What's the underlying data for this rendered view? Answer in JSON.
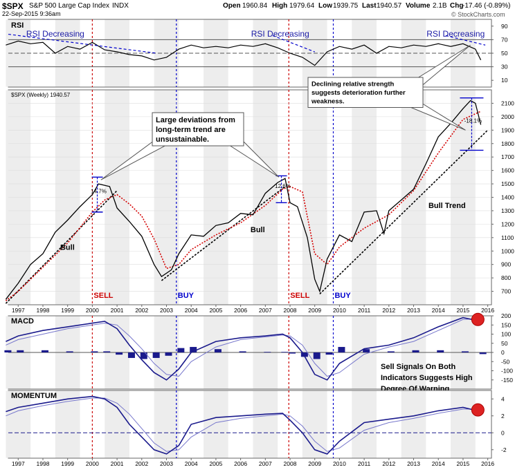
{
  "header": {
    "symbol": "$SPX",
    "name": "S&P 500 Large Cap Index",
    "exchange": "INDX",
    "date": "22-Sep-2015 9:36am",
    "open_label": "Open",
    "open_value": "1960.84",
    "high_label": "High",
    "high_value": "1979.64",
    "low_label": "Low",
    "low_value": "1939.75",
    "last_label": "Last",
    "last_value": "1940.57",
    "volume_label": "Volume",
    "volume_value": "2.1B",
    "chg_label": "Chg",
    "chg_value": "-17.46 (-0.89%)",
    "watermark": "© StockCharts.com"
  },
  "chart_data": [
    {
      "panel": "rsi",
      "type": "line",
      "title": "RSI",
      "ylim": [
        0,
        100
      ],
      "yticks": [
        10,
        30,
        50,
        70,
        90
      ],
      "guide_lines": [
        30,
        50,
        70
      ],
      "series": [
        {
          "x": [
            1996.5,
            1997,
            1997.5,
            1998,
            1998.5,
            1999,
            1999.5,
            2000,
            2000.5,
            2001,
            2001.5,
            2002,
            2002.5,
            2003,
            2003.5,
            2004,
            2004.5,
            2005,
            2005.5,
            2006,
            2006.5,
            2007,
            2007.5,
            2008,
            2008.5,
            2009,
            2009.5,
            2010,
            2010.5,
            2011,
            2011.5,
            2012,
            2012.5,
            2013,
            2013.5,
            2014,
            2014.5,
            2015,
            2015.5,
            2015.72
          ],
          "values": [
            62,
            68,
            64,
            66,
            50,
            60,
            56,
            66,
            55,
            52,
            48,
            46,
            40,
            44,
            56,
            62,
            58,
            60,
            58,
            62,
            60,
            64,
            58,
            50,
            44,
            32,
            52,
            60,
            56,
            62,
            50,
            60,
            58,
            62,
            60,
            64,
            60,
            64,
            56,
            40
          ]
        }
      ],
      "annotations": [
        {
          "text": "RSI Decreasing",
          "x": 1998.5
        },
        {
          "text": "RSI Decreasing",
          "x": 2007.6
        },
        {
          "text": "RSI Decreasing",
          "x": 2014.7
        }
      ],
      "callout": [
        "Declining relative strength",
        "suggests deterioration further",
        "weakness."
      ]
    },
    {
      "panel": "price",
      "type": "line",
      "label": "$SPX (Weekly) 1940.57",
      "ylim": [
        600,
        2200
      ],
      "yticks": [
        700,
        800,
        900,
        1000,
        1100,
        1200,
        1300,
        1400,
        1500,
        1600,
        1700,
        1800,
        1900,
        2000,
        2100
      ],
      "xticks": [
        1997,
        1998,
        1999,
        2000,
        2001,
        2002,
        2003,
        2004,
        2005,
        2006,
        2007,
        2008,
        2009,
        2010,
        2011,
        2012,
        2013,
        2014,
        2015,
        2016
      ],
      "series": [
        {
          "x": [
            1996.5,
            1997,
            1997.5,
            1998,
            1998.5,
            1999,
            1999.5,
            2000,
            2000.25,
            2000.7,
            2001,
            2001.5,
            2002,
            2002.5,
            2002.8,
            2003.2,
            2003.5,
            2004,
            2004.5,
            2005,
            2005.5,
            2006,
            2006.5,
            2007,
            2007.5,
            2007.8,
            2008,
            2008.3,
            2008.7,
            2009,
            2009.2,
            2009.5,
            2010,
            2010.5,
            2011,
            2011.5,
            2011.8,
            2012,
            2012.5,
            2013,
            2013.5,
            2014,
            2014.5,
            2015,
            2015.3,
            2015.5,
            2015.72
          ],
          "values": [
            640,
            760,
            900,
            980,
            1140,
            1230,
            1330,
            1420,
            1500,
            1480,
            1320,
            1220,
            1110,
            900,
            810,
            860,
            980,
            1120,
            1110,
            1190,
            1210,
            1280,
            1270,
            1430,
            1510,
            1540,
            1360,
            1330,
            1100,
            790,
            700,
            940,
            1120,
            1070,
            1290,
            1300,
            1130,
            1300,
            1380,
            1460,
            1650,
            1850,
            1950,
            2060,
            2120,
            2100,
            1940
          ]
        },
        {
          "x": [
            1996.5,
            1997,
            1998,
            1999,
            2000,
            2000.5,
            2001,
            2001.5,
            2002,
            2002.5,
            2003,
            2003.5,
            2004,
            2005,
            2006,
            2007,
            2007.7,
            2008,
            2008.5,
            2009,
            2009.5,
            2010,
            2011,
            2012,
            2013,
            2014,
            2015,
            2015.72
          ],
          "values": [
            630,
            700,
            880,
            1060,
            1290,
            1380,
            1420,
            1350,
            1260,
            1090,
            870,
            900,
            1010,
            1120,
            1210,
            1340,
            1460,
            1480,
            1440,
            980,
            900,
            1030,
            1170,
            1270,
            1450,
            1730,
            1980,
            2040
          ]
        }
      ],
      "trendlines": [
        {
          "x": [
            1996.5,
            2001
          ],
          "values": [
            610,
            1450
          ]
        },
        {
          "x": [
            2002.8,
            2007.8
          ],
          "values": [
            780,
            1480
          ]
        },
        {
          "x": [
            2009.2,
            2016
          ],
          "values": [
            680,
            1900
          ]
        }
      ],
      "signals": [
        {
          "type": "SELL",
          "x": 2000.0,
          "color": "#cc0000"
        },
        {
          "type": "BUY",
          "x": 2003.4,
          "color": "#0000cc"
        },
        {
          "type": "SELL",
          "x": 2007.95,
          "color": "#cc0000"
        },
        {
          "type": "BUY",
          "x": 2009.75,
          "color": "#0000cc"
        }
      ],
      "labels": [
        {
          "text": "Bull",
          "x": 1998.7,
          "y": 1010
        },
        {
          "text": "Bull",
          "x": 2006.4,
          "y": 1140
        },
        {
          "text": "Bull Trend",
          "x": 2013.6,
          "y": 1320
        }
      ],
      "percent_tags": [
        "14.7%",
        "12.6%",
        "-18.1%"
      ],
      "callout": [
        "Large deviations from",
        "long-term trend are",
        "unsustainable."
      ]
    },
    {
      "panel": "macd",
      "type": "line",
      "title": "MACD",
      "ylim": [
        -200,
        200
      ],
      "yticks": [
        -150,
        -100,
        -50,
        0,
        50,
        100,
        150,
        200
      ],
      "series": [
        {
          "x": [
            1996.5,
            1997,
            1998,
            1999,
            2000,
            2000.5,
            2001,
            2001.5,
            2002,
            2002.5,
            2003,
            2003.5,
            2004,
            2005,
            2006,
            2007,
            2007.7,
            2008,
            2008.5,
            2009,
            2009.5,
            2010,
            2011,
            2012,
            2013,
            2014,
            2015,
            2015.72
          ],
          "values": [
            60,
            90,
            120,
            140,
            160,
            170,
            130,
            40,
            -40,
            -110,
            -150,
            -90,
            0,
            60,
            80,
            90,
            100,
            80,
            0,
            -120,
            -150,
            -60,
            20,
            40,
            80,
            140,
            190,
            170
          ]
        },
        {
          "x": [
            1996.5,
            1997,
            1998,
            1999,
            2000,
            2000.5,
            2001,
            2001.5,
            2002,
            2002.5,
            2003,
            2003.5,
            2004,
            2005,
            2006,
            2007,
            2007.7,
            2008,
            2008.5,
            2009,
            2009.5,
            2010,
            2011,
            2012,
            2013,
            2014,
            2015,
            2015.72
          ],
          "values": [
            40,
            70,
            100,
            130,
            150,
            160,
            150,
            90,
            20,
            -60,
            -120,
            -130,
            -50,
            30,
            70,
            85,
            95,
            90,
            40,
            -60,
            -130,
            -110,
            -10,
            30,
            60,
            120,
            180,
            185
          ]
        }
      ],
      "signal_marker": {
        "x": 2015.6,
        "y": 180
      },
      "note": [
        "Sell Signals On Both",
        "Indicators Suggests High",
        "Degree Of Warning"
      ]
    },
    {
      "panel": "momentum",
      "type": "line",
      "title": "MOMENTUM",
      "ylim": [
        -3,
        5
      ],
      "yticks": [
        -2,
        0,
        2,
        4
      ],
      "xticks": [
        1997,
        1998,
        1999,
        2000,
        2001,
        2002,
        2003,
        2004,
        2005,
        2006,
        2007,
        2008,
        2009,
        2010,
        2011,
        2012,
        2013,
        2014,
        2015,
        2016
      ],
      "series": [
        {
          "x": [
            1996.5,
            1997,
            1998,
            1999,
            2000,
            2000.5,
            2001,
            2001.5,
            2002,
            2002.5,
            2003,
            2003.5,
            2004,
            2005,
            2006,
            2007,
            2007.7,
            2008,
            2008.5,
            2009,
            2009.5,
            2010,
            2011,
            2012,
            2013,
            2014,
            2015,
            2015.72
          ],
          "values": [
            2.5,
            3.0,
            3.5,
            4.0,
            4.3,
            4.0,
            3.0,
            1.0,
            -0.5,
            -2.0,
            -2.5,
            -1.5,
            1.0,
            1.8,
            2.0,
            2.2,
            2.3,
            1.5,
            0,
            -2.0,
            -2.5,
            -1.0,
            1.2,
            1.6,
            2.0,
            2.6,
            3.0,
            2.5
          ]
        },
        {
          "x": [
            1996.5,
            1997,
            1998,
            1999,
            2000,
            2000.5,
            2001,
            2001.5,
            2002,
            2002.5,
            2003,
            2003.5,
            2004,
            2005,
            2006,
            2007,
            2007.7,
            2008,
            2008.5,
            2009,
            2009.5,
            2010,
            2011,
            2012,
            2013,
            2014,
            2015,
            2015.72
          ],
          "values": [
            2.0,
            2.6,
            3.2,
            3.7,
            4.1,
            4.1,
            3.5,
            2.2,
            0.5,
            -1.2,
            -2.2,
            -2.0,
            -0.5,
            1.2,
            1.7,
            2.0,
            2.2,
            2.0,
            0.8,
            -1.0,
            -2.2,
            -1.8,
            0.3,
            1.2,
            1.7,
            2.3,
            2.8,
            2.8
          ]
        }
      ],
      "signal_marker": {
        "x": 2015.6,
        "y": 2.7
      }
    }
  ],
  "colors": {
    "price": "#000000",
    "ma": "#d40000",
    "macd": "#1a1a8c",
    "sell": "#cc0000",
    "buy": "#0000cc",
    "text_blue": "#1a1aa6"
  }
}
